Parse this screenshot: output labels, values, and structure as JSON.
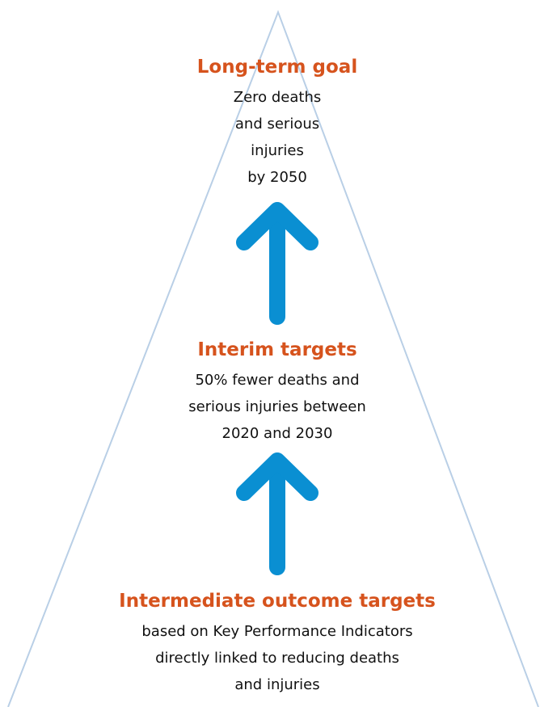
{
  "levels": [
    {
      "title": "Long-term goal",
      "lines": [
        "Zero deaths",
        "and serious",
        "injuries",
        "by 2050"
      ]
    },
    {
      "title": "Interim targets",
      "lines": [
        "50% fewer deaths and",
        "serious injuries between",
        "2020 and 2030"
      ]
    },
    {
      "title": "Intermediate outcome targets",
      "lines": [
        "based on Key Performance Indicators",
        "directly linked to reducing deaths",
        "and injuries"
      ]
    }
  ]
}
